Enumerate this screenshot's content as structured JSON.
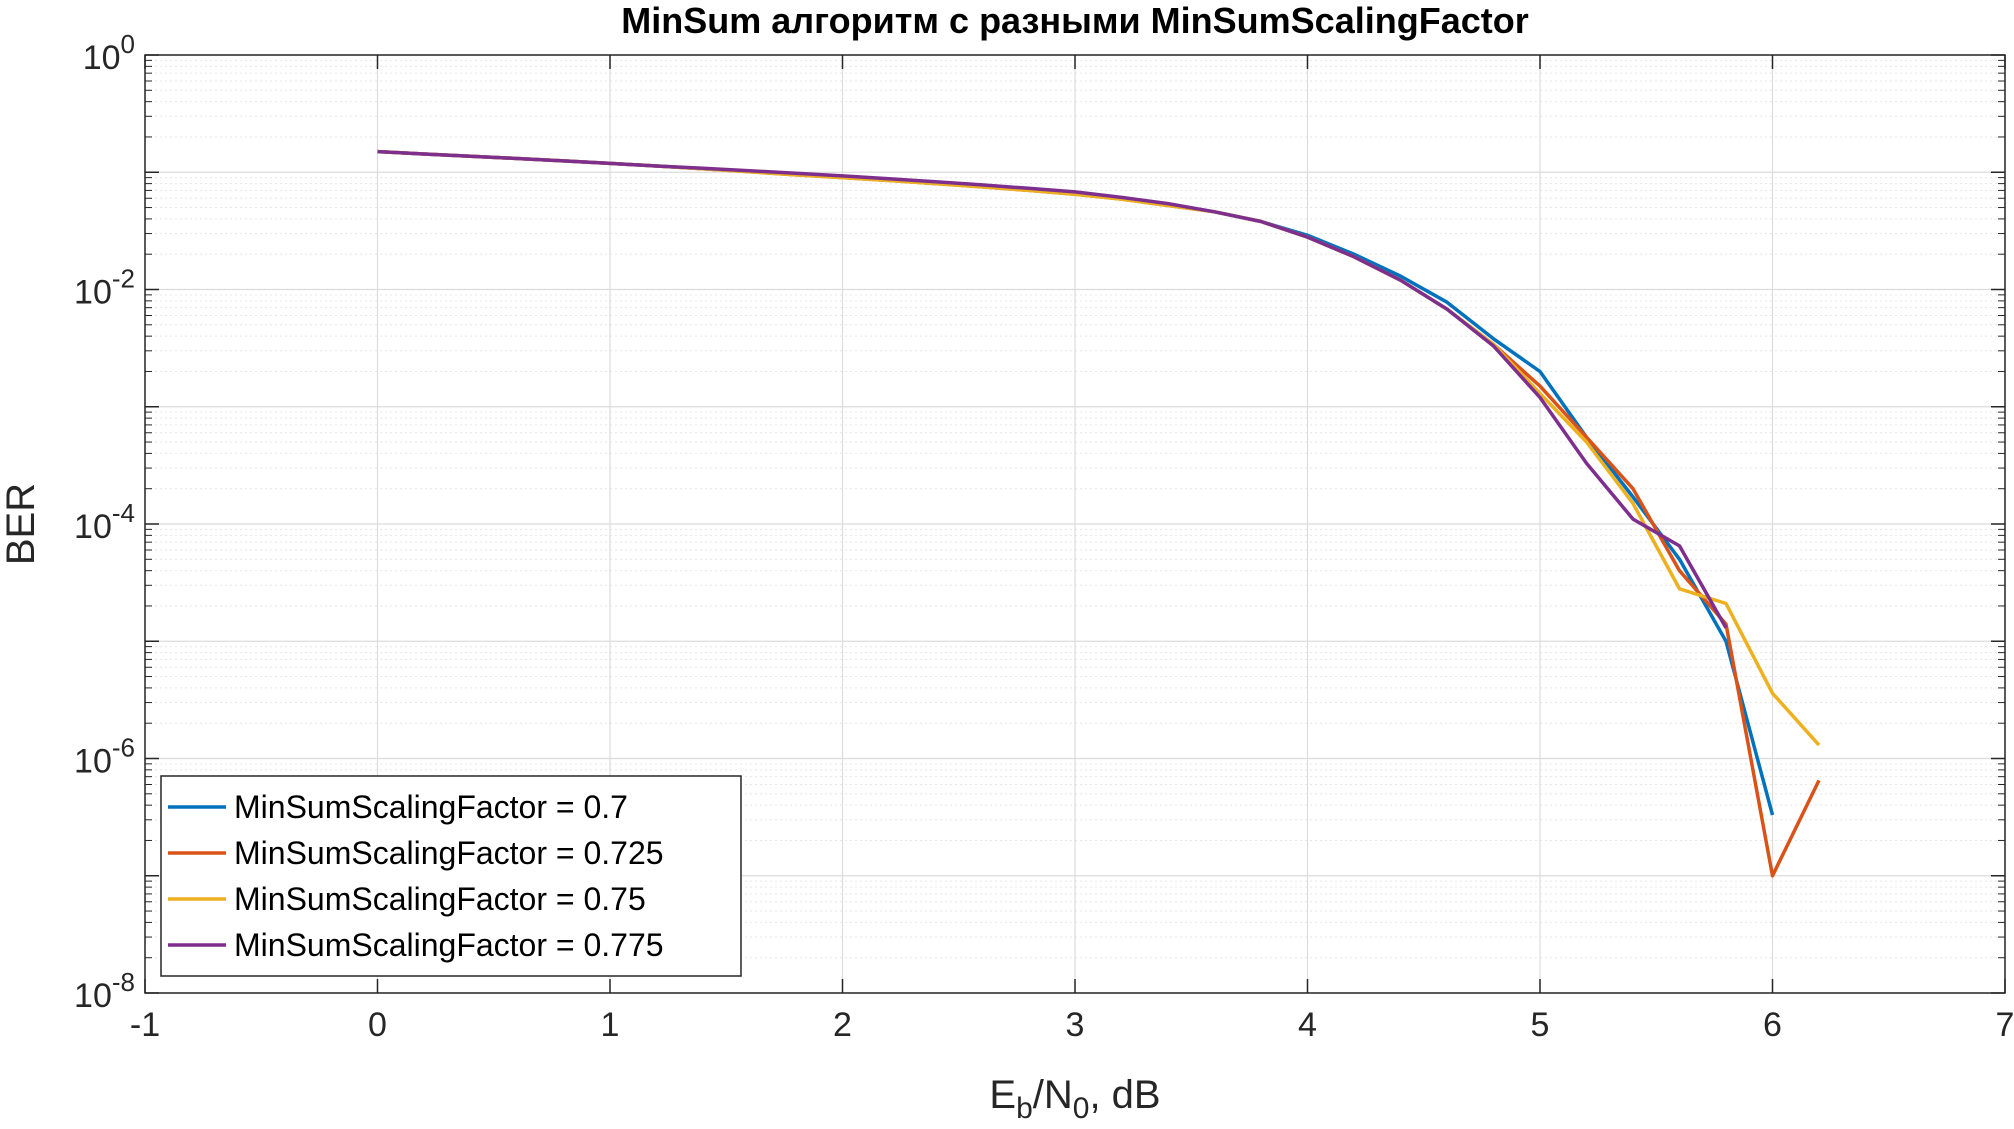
{
  "chart_data": {
    "type": "line",
    "title": "MinSum алгоритм с разными MinSumScalingFactor",
    "xlabel": {
      "base": "E",
      "sub1": "b",
      "mid": "/N",
      "sub2": "0",
      "tail": ", dB"
    },
    "ylabel": "BER",
    "xlim": [
      -1,
      7
    ],
    "ylim": [
      1e-08,
      1
    ],
    "yscale": "log",
    "grid": true,
    "minor_grid": true,
    "x_ticks": [
      {
        "value": -1,
        "label": "-1"
      },
      {
        "value": 0,
        "label": "0"
      },
      {
        "value": 1,
        "label": "1"
      },
      {
        "value": 2,
        "label": "2"
      },
      {
        "value": 3,
        "label": "3"
      },
      {
        "value": 4,
        "label": "4"
      },
      {
        "value": 5,
        "label": "5"
      },
      {
        "value": 6,
        "label": "6"
      },
      {
        "value": 7,
        "label": "7"
      }
    ],
    "y_ticks": [
      {
        "value": 1,
        "base": "10",
        "exp": "0"
      },
      {
        "value": 0.01,
        "base": "10",
        "exp": "-2"
      },
      {
        "value": 0.0001,
        "base": "10",
        "exp": "-4"
      },
      {
        "value": 1e-06,
        "base": "10",
        "exp": "-6"
      },
      {
        "value": 1e-08,
        "base": "10",
        "exp": "-8"
      }
    ],
    "legend_position": "bottom-left",
    "series": [
      {
        "name": "MinSumScalingFactor = 0.7",
        "color": "#0072BD",
        "x": [
          0,
          0.2,
          0.4,
          0.6,
          0.8,
          1.0,
          1.2,
          1.4,
          1.6,
          1.8,
          2.0,
          2.2,
          2.4,
          2.6,
          2.8,
          3.0,
          3.2,
          3.4,
          3.6,
          3.8,
          4.0,
          4.2,
          4.4,
          4.6,
          4.8,
          5.0,
          5.2,
          5.4,
          5.6,
          5.8,
          6.0
        ],
        "y": [
          0.15,
          0.143,
          0.137,
          0.131,
          0.125,
          0.119,
          0.113,
          0.107,
          0.102,
          0.097,
          0.092,
          0.087,
          0.082,
          0.077,
          0.072,
          0.067,
          0.06,
          0.053,
          0.046,
          0.038,
          0.029,
          0.02,
          0.013,
          0.0078,
          0.0038,
          0.002,
          0.00055,
          0.00017,
          5e-05,
          1e-05,
          3.3e-07
        ]
      },
      {
        "name": "MinSumScalingFactor = 0.725",
        "color": "#D95319",
        "x": [
          0,
          0.2,
          0.4,
          0.6,
          0.8,
          1.0,
          1.2,
          1.4,
          1.6,
          1.8,
          2.0,
          2.2,
          2.4,
          2.6,
          2.8,
          3.0,
          3.2,
          3.4,
          3.6,
          3.8,
          4.0,
          4.2,
          4.4,
          4.6,
          4.8,
          5.0,
          5.2,
          5.4,
          5.6,
          5.8,
          6.0,
          6.2
        ],
        "y": [
          0.15,
          0.143,
          0.137,
          0.131,
          0.125,
          0.119,
          0.113,
          0.107,
          0.101,
          0.095,
          0.09,
          0.085,
          0.08,
          0.075,
          0.07,
          0.065,
          0.059,
          0.052,
          0.046,
          0.038,
          0.028,
          0.019,
          0.012,
          0.0068,
          0.0034,
          0.0015,
          0.00055,
          0.0002,
          4e-05,
          1.4e-05,
          1e-07,
          6.5e-07
        ]
      },
      {
        "name": "MinSumScalingFactor = 0.75",
        "color": "#EDB120",
        "x": [
          0,
          0.2,
          0.4,
          0.6,
          0.8,
          1.0,
          1.2,
          1.4,
          1.6,
          1.8,
          2.0,
          2.2,
          2.4,
          2.6,
          2.8,
          3.0,
          3.2,
          3.4,
          3.6,
          3.8,
          4.0,
          4.2,
          4.4,
          4.6,
          4.8,
          5.0,
          5.2,
          5.4,
          5.6,
          5.8,
          6.0,
          6.2
        ],
        "y": [
          0.15,
          0.143,
          0.137,
          0.131,
          0.125,
          0.119,
          0.113,
          0.107,
          0.101,
          0.095,
          0.09,
          0.085,
          0.08,
          0.075,
          0.07,
          0.065,
          0.059,
          0.052,
          0.046,
          0.038,
          0.028,
          0.019,
          0.012,
          0.0068,
          0.0034,
          0.0013,
          0.0005,
          0.00015,
          2.8e-05,
          2.1e-05,
          3.6e-06,
          1.3e-06
        ]
      },
      {
        "name": "MinSumScalingFactor = 0.775",
        "color": "#7E2F8E",
        "x": [
          0,
          0.2,
          0.4,
          0.6,
          0.8,
          1.0,
          1.2,
          1.4,
          1.6,
          1.8,
          2.0,
          2.2,
          2.4,
          2.6,
          2.8,
          3.0,
          3.2,
          3.4,
          3.6,
          3.8,
          4.0,
          4.2,
          4.4,
          4.6,
          4.8,
          5.0,
          5.2,
          5.4,
          5.6,
          5.8
        ],
        "y": [
          0.15,
          0.143,
          0.137,
          0.131,
          0.125,
          0.119,
          0.113,
          0.108,
          0.103,
          0.098,
          0.093,
          0.088,
          0.083,
          0.078,
          0.073,
          0.068,
          0.061,
          0.054,
          0.046,
          0.038,
          0.028,
          0.019,
          0.012,
          0.0068,
          0.0033,
          0.0012,
          0.00033,
          0.00011,
          6.5e-05,
          1.3e-05
        ]
      }
    ]
  }
}
